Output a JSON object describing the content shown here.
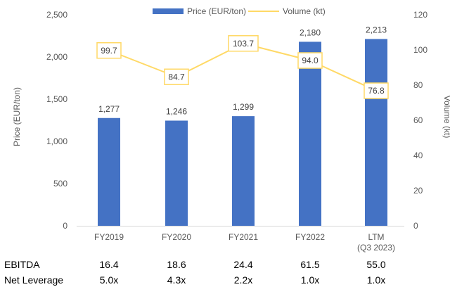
{
  "chart_data": {
    "type": "bar",
    "categories": [
      "FY2019",
      "FY2020",
      "FY2021",
      "FY2022",
      "LTM"
    ],
    "category_sublabels": [
      "",
      "",
      "",
      "",
      "(Q3 2023)"
    ],
    "series": [
      {
        "name": "Price (EUR/ton)",
        "type": "bar",
        "axis": "left",
        "color": "#4472C4",
        "values": [
          1277,
          1246,
          1299,
          2180,
          2213
        ],
        "labels": [
          "1,277",
          "1,246",
          "1,299",
          "2,180",
          "2,213"
        ]
      },
      {
        "name": "Volume (kt)",
        "type": "line",
        "axis": "right",
        "color": "#FFD966",
        "values": [
          99.7,
          84.7,
          103.7,
          94.0,
          76.8
        ],
        "labels": [
          "99.7",
          "84.7",
          "103.7",
          "94.0",
          "76.8"
        ]
      }
    ],
    "ylabel": "Price (EUR/ton)",
    "y2label": "Volume (kt)",
    "ylim": [
      0,
      2500
    ],
    "y2lim": [
      0,
      120
    ],
    "yticks": [
      "0",
      "500",
      "1,000",
      "1,500",
      "2,000",
      "2,500"
    ],
    "y2ticks": [
      "0",
      "20",
      "40",
      "60",
      "80",
      "100",
      "120"
    ],
    "grid": false,
    "legend_position": "top-center",
    "table_rows": [
      {
        "label": "EBITDA",
        "values": [
          "16.4",
          "18.6",
          "24.4",
          "61.5",
          "55.0"
        ]
      },
      {
        "label": "Net Leverage",
        "values": [
          "5.0x",
          "4.3x",
          "2.2x",
          "1.0x",
          "1.0x"
        ]
      }
    ]
  }
}
